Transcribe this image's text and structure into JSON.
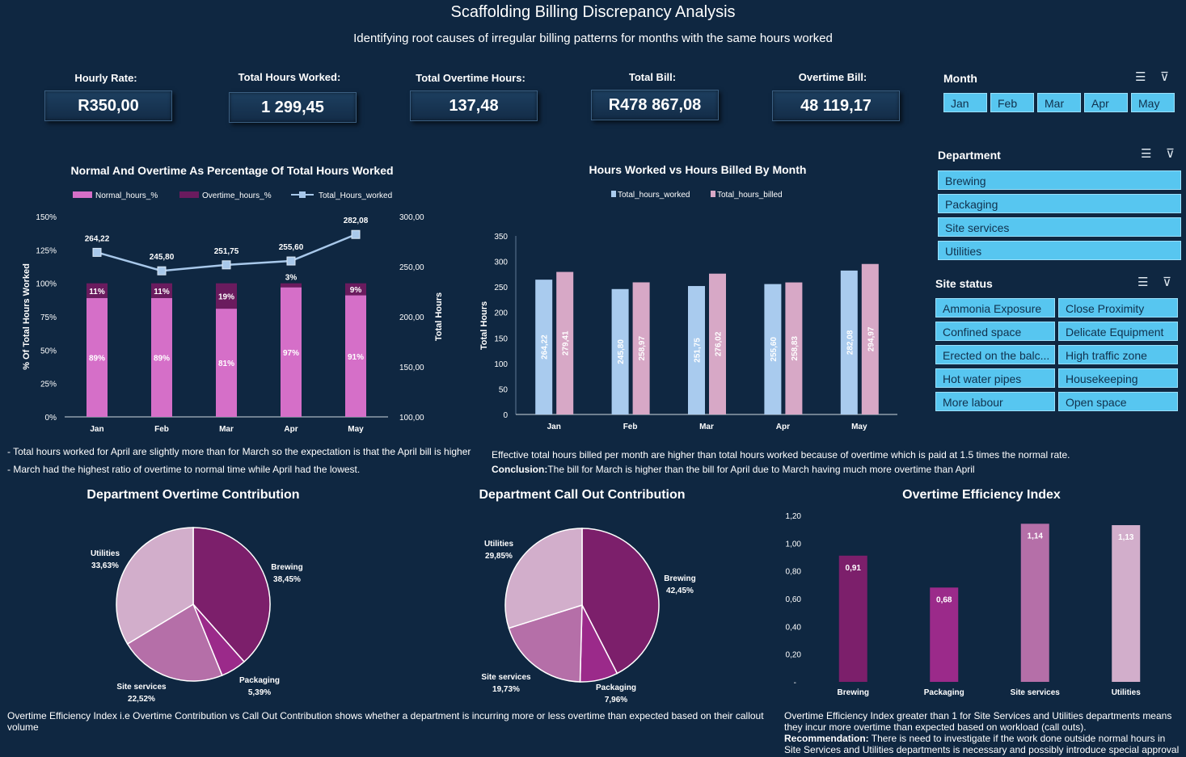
{
  "header": {
    "title": "Scaffolding Billing Discrepancy Analysis",
    "subtitle": "Identifying root causes of irregular billing patterns for months with the same hours worked"
  },
  "kpis": [
    {
      "label": "Hourly Rate:",
      "value": "R350,00"
    },
    {
      "label": "Total Hours Worked:",
      "value": "1 299,45"
    },
    {
      "label": "Total Overtime Hours:",
      "value": "137,48"
    },
    {
      "label": "Total Bill:",
      "value": "R478 867,08"
    },
    {
      "label": "Overtime Bill:",
      "value": "48 119,17"
    }
  ],
  "slicers": {
    "month": {
      "title": "Month",
      "items": [
        "Jan",
        "Feb",
        "Mar",
        "Apr",
        "May"
      ]
    },
    "department": {
      "title": "Department",
      "items": [
        "Brewing",
        "Packaging",
        "Site services",
        "Utilities"
      ]
    },
    "site_status": {
      "title": "Site status",
      "items": [
        "Ammonia Exposure",
        "Close Proximity",
        "Confined space",
        "Delicate Equipment",
        "Erected on the balc...",
        "High traffic zone",
        "Hot water pipes",
        "Housekeeping",
        "More labour",
        "Open space"
      ]
    }
  },
  "colors": {
    "background": "#0f2741",
    "normal_pct": "#d56fc8",
    "overtime_pct": "#6a1b5e",
    "hours_line": "#a8c8ea",
    "worked_bar": "#a9cbee",
    "billed_bar": "#d7a8c6",
    "slicer": "#57c6f0"
  },
  "notes": {
    "left1": "- Total hours worked for April are slightly more than for March so the expectation is that  the April bill is higher",
    "left2": "- March had the highest ratio of overtime to normal time while April had the lowest.",
    "right1": "Effective total hours billed per month are higher than total hours worked because of overtime which is paid at 1.5 times the normal rate.",
    "conclusion_label": "Conclusion:",
    "conclusion_text": "The bill for March is higher than the bill for April due to March having much more overtime than April",
    "efficiency_note": "Overtime Efficiency Index  i.e Overtime Contribution vs Call Out Contribution shows whether a department is incurring more or less overtime than expected based on their callout volume",
    "efficiency_right": "Overtime Efficiency Index greater than 1 for Site Services and Utilities departments means they incur more overtime than expected based on workload (call outs).",
    "recommendation_label": "Recommendation:",
    "recommendation_text": " There is need to investigate if the work done outside normal hours in Site Services and Utilities departments is necessary and possibly introduce special approval"
  },
  "chart_data": [
    {
      "id": "pct",
      "type": "bar",
      "title": "Normal And Overtime As Percentage Of Total Hours Worked",
      "categories": [
        "Jan",
        "Feb",
        "Mar",
        "Apr",
        "May"
      ],
      "series": [
        {
          "name": "Normal_hours_%",
          "values": [
            0.89,
            0.89,
            0.81,
            0.97,
            0.91
          ],
          "labels": [
            "89%",
            "89%",
            "81%",
            "97%",
            "91%"
          ],
          "axis": "left"
        },
        {
          "name": "Overtime_hours_%",
          "values": [
            0.11,
            0.11,
            0.19,
            0.03,
            0.09
          ],
          "labels": [
            "11%",
            "11%",
            "19%",
            "3%",
            "9%"
          ],
          "axis": "left"
        },
        {
          "name": "Total_Hours_worked",
          "values": [
            264.22,
            245.8,
            251.75,
            255.6,
            282.08
          ],
          "labels": [
            "264,22",
            "245,80",
            "251,75",
            "255,60",
            "282,08"
          ],
          "axis": "right",
          "type": "line"
        }
      ],
      "ylabel": "% Of Total Hours Worked",
      "y2label": "Total Hours",
      "ylim": [
        0,
        1.5
      ],
      "y2lim": [
        100,
        300
      ],
      "yticks": [
        "0%",
        "25%",
        "50%",
        "75%",
        "100%",
        "125%",
        "150%"
      ],
      "y2ticks": [
        "100,00",
        "150,00",
        "200,00",
        "250,00",
        "300,00"
      ],
      "legend": "top"
    },
    {
      "id": "billed",
      "type": "bar",
      "title": "Hours Worked vs Hours Billed By Month",
      "categories": [
        "Jan",
        "Feb",
        "Mar",
        "Apr",
        "May"
      ],
      "series": [
        {
          "name": "Total_hours_worked",
          "values": [
            264.22,
            245.8,
            251.75,
            255.6,
            282.08
          ],
          "labels": [
            "264,22",
            "245,80",
            "251,75",
            "255,60",
            "282,08"
          ]
        },
        {
          "name": "Total_hours_billed",
          "values": [
            279.41,
            258.97,
            276.02,
            258.83,
            294.97
          ],
          "labels": [
            "279,41",
            "258,97",
            "276,02",
            "258,83",
            "294,97"
          ]
        }
      ],
      "ylabel": "Total Hours",
      "ylim": [
        0,
        350
      ],
      "yticks": [
        "0",
        "50",
        "100",
        "150",
        "200",
        "250",
        "300",
        "350"
      ],
      "legend": "top"
    },
    {
      "id": "overtime_pie",
      "type": "pie",
      "title": "Department Overtime Contribution",
      "slices": [
        {
          "name": "Brewing",
          "value": 38.45,
          "label": "38,45%",
          "color": "#7c1f6b"
        },
        {
          "name": "Packaging",
          "value": 5.39,
          "label": "5,39%",
          "color": "#9b2a8a"
        },
        {
          "name": "Site services",
          "value": 22.52,
          "label": "22,52%",
          "color": "#b56fa8"
        },
        {
          "name": "Utilities",
          "value": 33.63,
          "label": "33,63%",
          "color": "#d2aecb"
        }
      ]
    },
    {
      "id": "callout_pie",
      "type": "pie",
      "title": "Department Call Out Contribution",
      "slices": [
        {
          "name": "Brewing",
          "value": 42.45,
          "label": "42,45%",
          "color": "#7c1f6b"
        },
        {
          "name": "Packaging",
          "value": 7.96,
          "label": "7,96%",
          "color": "#9b2a8a"
        },
        {
          "name": "Site services",
          "value": 19.73,
          "label": "19,73%",
          "color": "#b56fa8"
        },
        {
          "name": "Utilities",
          "value": 29.85,
          "label": "29,85%",
          "color": "#d2aecb"
        }
      ]
    },
    {
      "id": "efficiency",
      "type": "bar",
      "title": "Overtime Efficiency Index",
      "categories": [
        "Brewing",
        "Packaging",
        "Site services",
        "Utilities"
      ],
      "values": [
        0.91,
        0.68,
        1.14,
        1.13
      ],
      "labels": [
        "0,91",
        "0,68",
        "1,14",
        "1,13"
      ],
      "colors": [
        "#7c1f6b",
        "#9b2a8a",
        "#b56fa8",
        "#d2aecb"
      ],
      "ylim": [
        0,
        1.2
      ],
      "yticks": [
        "0,20",
        "0,40",
        "0,60",
        "0,80",
        "1,00",
        "1,20"
      ]
    }
  ]
}
